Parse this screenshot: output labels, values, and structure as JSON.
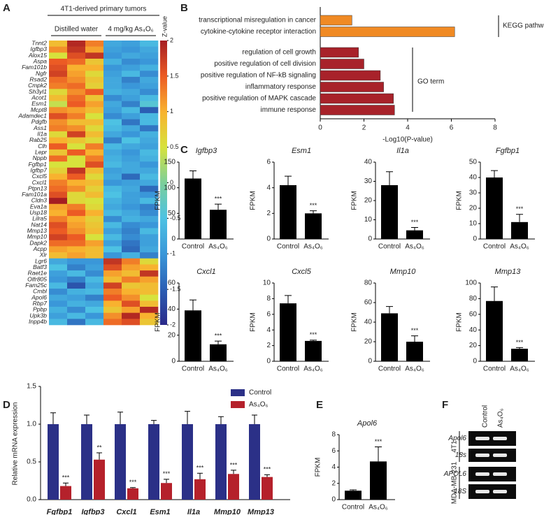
{
  "panel_labels": [
    "A",
    "B",
    "C",
    "D",
    "E",
    "F"
  ],
  "chart_data": [
    {
      "type": "heatmap",
      "header": "4T1-derived primary tumors",
      "groups": [
        "Distilled water",
        "4 mg/kg As₄O₆"
      ],
      "rows": [
        "Tnnt2",
        "Igfbp3",
        "Alox15",
        "Aspa",
        "Fam101b",
        "Ngfr",
        "Rsad2",
        "Cmpk2",
        "Sh3yl1",
        "Acot1",
        "Esm1",
        "Mcpt8",
        "Adamdec1",
        "Pdgfb",
        "Ass1",
        "Il1a",
        "Rab25",
        "Clh",
        "Lepr",
        "Nppb",
        "Fgfbp1",
        "Igfbp7",
        "Cxcl5",
        "Cxcl1",
        "Ptpn13",
        "Fam101a",
        "Cldn3",
        "Eva1a",
        "Usp18",
        "Lilra5",
        "Nat14",
        "Mmp13",
        "Mmp10",
        "Dapk2",
        "Acpp",
        "Xlr",
        "Lgr6",
        "Batf3",
        "Raet1e",
        "Olfr805",
        "Fam25c",
        "Cmbl",
        "Apol6",
        "Rbp7",
        "Ppbp",
        "Upk3b",
        "Inpp4b"
      ],
      "values": [
        [
          0.9,
          1.9,
          1.3,
          -0.8,
          -0.9,
          -0.6
        ],
        [
          1.2,
          1.8,
          1.1,
          -0.9,
          -1.0,
          -0.8
        ],
        [
          0.5,
          1.6,
          1.8,
          -1.0,
          -0.8,
          -0.9
        ],
        [
          1.5,
          1.4,
          0.8,
          -0.7,
          -1.1,
          -1.0
        ],
        [
          1.6,
          1.0,
          1.0,
          -1.0,
          -0.9,
          -0.7
        ],
        [
          1.7,
          1.1,
          0.6,
          -0.9,
          -0.6,
          -1.1
        ],
        [
          1.4,
          1.2,
          0.8,
          -0.8,
          -1.2,
          -0.8
        ],
        [
          1.3,
          1.4,
          0.7,
          -0.8,
          -1.0,
          -0.9
        ],
        [
          0.6,
          1.2,
          1.5,
          -0.7,
          -0.8,
          -1.1
        ],
        [
          0.9,
          1.4,
          0.8,
          -1.1,
          -0.9,
          -0.6
        ],
        [
          0.4,
          1.5,
          1.1,
          -0.8,
          -1.2,
          -0.4
        ],
        [
          1.2,
          1.1,
          0.9,
          -0.9,
          -0.6,
          -1.5
        ],
        [
          1.6,
          1.3,
          0.5,
          -1.1,
          -0.9,
          -0.6
        ],
        [
          1.2,
          0.9,
          0.9,
          -0.5,
          -1.3,
          -0.6
        ],
        [
          1.3,
          1.2,
          0.6,
          -0.6,
          -0.8,
          -1.3
        ],
        [
          0.6,
          1.7,
          0.9,
          -0.8,
          -1.0,
          -0.7
        ],
        [
          1.0,
          0.8,
          0.6,
          -1.2,
          -0.5,
          -0.8
        ],
        [
          1.5,
          0.5,
          1.3,
          -0.6,
          -0.8,
          -0.9
        ],
        [
          0.8,
          1.5,
          1.0,
          -0.8,
          -1.0,
          -0.6
        ],
        [
          1.4,
          0.5,
          1.3,
          -0.7,
          -0.9,
          -0.7
        ],
        [
          0.5,
          0.5,
          1.6,
          -0.6,
          -0.8,
          -1.0
        ],
        [
          0.7,
          1.8,
          0.9,
          -0.9,
          -0.8,
          -0.8
        ],
        [
          1.0,
          1.5,
          0.6,
          -0.8,
          -1.4,
          -0.6
        ],
        [
          1.3,
          1.0,
          0.9,
          -1.0,
          -0.9,
          -0.8
        ],
        [
          1.4,
          1.2,
          0.7,
          -0.6,
          -0.8,
          -1.4
        ],
        [
          1.6,
          0.6,
          0.9,
          -0.5,
          -0.9,
          -1.0
        ],
        [
          2.0,
          0.6,
          0.5,
          -0.7,
          -0.9,
          -0.6
        ],
        [
          1.1,
          1.3,
          0.6,
          -0.8,
          -1.0,
          -1.2
        ],
        [
          1.0,
          1.5,
          1.0,
          -0.6,
          -0.8,
          -1.1
        ],
        [
          1.3,
          1.0,
          0.7,
          -1.1,
          -0.7,
          -0.8
        ],
        [
          1.6,
          1.1,
          0.8,
          -0.6,
          -1.1,
          -1.0
        ],
        [
          1.5,
          1.2,
          0.9,
          -0.9,
          -1.2,
          -0.6
        ],
        [
          1.7,
          1.5,
          0.5,
          -0.6,
          -1.1,
          -0.9
        ],
        [
          1.4,
          1.4,
          1.1,
          -0.9,
          -1.3,
          -0.9
        ],
        [
          1.1,
          1.0,
          0.9,
          -0.5,
          -1.4,
          -0.8
        ],
        [
          0.9,
          1.1,
          0.9,
          -1.0,
          -0.7,
          -1.2
        ],
        [
          -0.8,
          -1.0,
          -1.0,
          1.8,
          1.3,
          0.6
        ],
        [
          -0.5,
          -1.2,
          -0.9,
          1.6,
          1.1,
          1.0
        ],
        [
          -0.9,
          -0.6,
          -1.1,
          1.1,
          0.9,
          1.8
        ],
        [
          -1.0,
          -1.2,
          -0.6,
          0.9,
          1.3,
          1.1
        ],
        [
          -0.6,
          -1.6,
          -0.8,
          1.7,
          0.8,
          0.9
        ],
        [
          -1.1,
          -0.7,
          -0.6,
          1.3,
          1.0,
          0.9
        ],
        [
          -0.8,
          -0.9,
          -1.2,
          1.5,
          1.2,
          0.5
        ],
        [
          -1.0,
          -0.7,
          -0.8,
          1.0,
          1.6,
          0.9
        ],
        [
          -0.7,
          -1.1,
          -0.5,
          0.8,
          1.1,
          1.9
        ],
        [
          -0.9,
          -0.6,
          -1.0,
          1.2,
          1.9,
          1.0
        ],
        [
          -0.6,
          -1.3,
          -0.6,
          1.4,
          1.6,
          0.8
        ]
      ],
      "colorbar_label": "Z-value",
      "zlim": [
        -2,
        2
      ],
      "zticks": [
        2,
        1.5,
        1,
        0.5,
        0,
        -0.5,
        -1,
        -1.5,
        -2
      ],
      "colorscale": [
        "#2b2a8a",
        "#2b5fb4",
        "#3a97d9",
        "#4dc2e3",
        "#7ccf9a",
        "#d7e23c",
        "#f8b22f",
        "#ec5b24",
        "#a51d22"
      ]
    },
    {
      "type": "barh",
      "categories": [
        "transcriptional misregulation in cancer",
        "cytokine-cytokine receptor interaction",
        "regulation of cell growth",
        "positive regulation of cell division",
        "positive regulation of NF-kB signaling",
        "inflammatory response",
        "positive regulation of MAPK cascade",
        "immune response"
      ],
      "values": [
        1.45,
        6.15,
        1.75,
        2.0,
        2.75,
        2.9,
        3.35,
        3.4
      ],
      "colors": [
        "#f08a24",
        "#f08a24",
        "#a8222a",
        "#a8222a",
        "#a8222a",
        "#a8222a",
        "#a8222a",
        "#a8222a"
      ],
      "group_labels": [
        "KEGG pathway",
        "GO term"
      ],
      "xlabel": "-Log10(P-value)",
      "xlim": [
        0,
        8
      ],
      "xticks": [
        0,
        2,
        4,
        6,
        8
      ]
    },
    {
      "type": "bar",
      "title": "Igfbp3",
      "ylabel": "FPKM",
      "categories": [
        "Control",
        "As₄O₆"
      ],
      "values": [
        118,
        57
      ],
      "errors": [
        15,
        11
      ],
      "color": "#000000",
      "ylim": [
        0,
        150
      ],
      "yticks": [
        0,
        50,
        100,
        150
      ],
      "significance": "***"
    },
    {
      "type": "bar",
      "title": "Esm1",
      "ylabel": "FPKM",
      "categories": [
        "Control",
        "As₄O₆"
      ],
      "values": [
        4.2,
        2.0
      ],
      "errors": [
        0.7,
        0.2
      ],
      "color": "#000000",
      "ylim": [
        0,
        6
      ],
      "yticks": [
        0,
        2,
        4,
        6
      ],
      "significance": "***"
    },
    {
      "type": "bar",
      "title": "Il1a",
      "ylabel": "FPKM",
      "categories": [
        "Control",
        "As₄O₆"
      ],
      "values": [
        28,
        4.5
      ],
      "errors": [
        7,
        1.5
      ],
      "color": "#000000",
      "ylim": [
        0,
        40
      ],
      "yticks": [
        0,
        10,
        20,
        30,
        40
      ],
      "significance": "***"
    },
    {
      "type": "bar",
      "title": "Fgfbp1",
      "ylabel": "FPKM",
      "categories": [
        "Control",
        "As₄O₆"
      ],
      "values": [
        40,
        11
      ],
      "errors": [
        4.5,
        5
      ],
      "color": "#000000",
      "ylim": [
        0,
        50
      ],
      "yticks": [
        0,
        10,
        20,
        30,
        40,
        50
      ],
      "significance": "***"
    },
    {
      "type": "bar",
      "title": "Cxcl1",
      "ylabel": "FPKM",
      "categories": [
        "Control",
        "As₄O₆"
      ],
      "values": [
        39,
        13
      ],
      "errors": [
        8,
        2.5
      ],
      "color": "#000000",
      "ylim": [
        0,
        60
      ],
      "yticks": [
        0,
        20,
        40,
        60
      ],
      "significance": "***"
    },
    {
      "type": "bar",
      "title": "Cxcl5",
      "ylabel": "FPKM",
      "categories": [
        "Control",
        "As₄O₆"
      ],
      "values": [
        7.4,
        2.6
      ],
      "errors": [
        1,
        0.1
      ],
      "color": "#000000",
      "ylim": [
        0,
        10
      ],
      "yticks": [
        0,
        2,
        4,
        6,
        8,
        10
      ],
      "significance": "***"
    },
    {
      "type": "bar",
      "title": "Mmp10",
      "ylabel": "FPKM",
      "categories": [
        "Control",
        "As₄O₆"
      ],
      "values": [
        49,
        20
      ],
      "errors": [
        7,
        6
      ],
      "color": "#000000",
      "ylim": [
        0,
        80
      ],
      "yticks": [
        0,
        20,
        40,
        60,
        80
      ],
      "significance": "***"
    },
    {
      "type": "bar",
      "title": "Mmp13",
      "ylabel": "FPKM",
      "categories": [
        "Control",
        "As₄O₆"
      ],
      "values": [
        77,
        16
      ],
      "errors": [
        18,
        1.5
      ],
      "color": "#000000",
      "ylim": [
        0,
        100
      ],
      "yticks": [
        0,
        20,
        40,
        60,
        80,
        100
      ],
      "significance": "***"
    },
    {
      "type": "grouped_bar",
      "ylabel": "Relative mRNA expression",
      "categories": [
        "Fgfbp1",
        "Igfbp3",
        "Cxcl1",
        "Esm1",
        "Il1a",
        "Mmp10",
        "Mmp13"
      ],
      "series": [
        {
          "name": "Control",
          "color": "#2b3087",
          "values": [
            1,
            1,
            1,
            1,
            1,
            1,
            1
          ],
          "errors": [
            0.15,
            0.12,
            0.16,
            0.05,
            0.17,
            0.1,
            0.12
          ]
        },
        {
          "name": "As₄O₆",
          "color": "#b5212b",
          "values": [
            0.18,
            0.53,
            0.15,
            0.22,
            0.27,
            0.34,
            0.3
          ],
          "errors": [
            0.04,
            0.09,
            0.01,
            0.05,
            0.08,
            0.05,
            0.03
          ]
        }
      ],
      "significance": [
        "***",
        "**",
        "***",
        "***",
        "***",
        "***",
        "***"
      ],
      "ylim": [
        0,
        1.5
      ],
      "yticks": [
        {
          "value": 0,
          "label": "0.0"
        },
        {
          "value": 0.5,
          "label": "0.5"
        },
        {
          "value": 1,
          "label": "1.0"
        },
        {
          "value": 1.5,
          "label": "1.5"
        }
      ],
      "legend": "top-right"
    },
    {
      "type": "bar",
      "title": "Apol6",
      "ylabel": "FPKM",
      "categories": [
        "Control",
        "As₄O₆"
      ],
      "values": [
        1.1,
        4.7
      ],
      "errors": [
        0.1,
        1.8
      ],
      "color": "#000000",
      "ylim": [
        0,
        8
      ],
      "yticks": [
        0,
        2,
        4,
        6,
        8
      ],
      "significance": "***"
    }
  ],
  "gel": {
    "columns": [
      "Control",
      "As₄O₆"
    ],
    "groups": [
      {
        "label": "4T1",
        "bands": [
          "Apol6",
          "18s"
        ]
      },
      {
        "label": "MDA-MB-231",
        "bands": [
          "APOL6",
          "18S"
        ]
      }
    ]
  }
}
